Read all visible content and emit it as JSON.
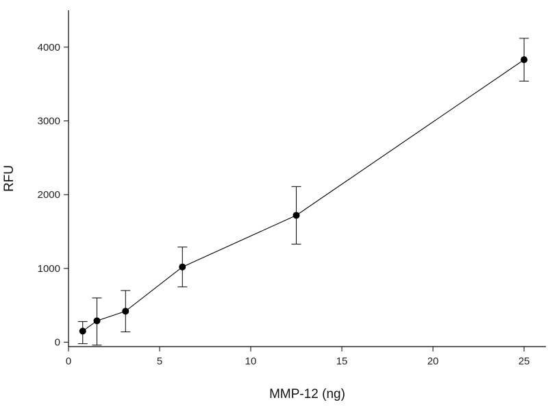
{
  "chart_data": {
    "type": "scatter",
    "title": "",
    "xlabel": "MMP-12 (ng)",
    "ylabel": "RFU",
    "xlim": [
      0,
      26.2
    ],
    "ylim": [
      -60,
      4500
    ],
    "x_ticks": [
      0,
      5,
      10,
      15,
      20,
      25
    ],
    "y_ticks": [
      0,
      1000,
      2000,
      3000,
      4000
    ],
    "grid": false,
    "legend": "none",
    "series": [
      {
        "x": [
          0.78,
          1.56,
          3.13,
          6.25,
          12.5,
          25
        ],
        "y": [
          150,
          290,
          420,
          1020,
          1720,
          3830
        ],
        "y_err_low": [
          170,
          330,
          280,
          270,
          390,
          290
        ],
        "y_err_high": [
          130,
          310,
          280,
          270,
          390,
          290
        ]
      }
    ],
    "marker": "filled-circle",
    "connect_points": true,
    "error_bars": true,
    "colors": {
      "line": "#000000",
      "marker": "#000000",
      "axis": "#000000"
    }
  }
}
